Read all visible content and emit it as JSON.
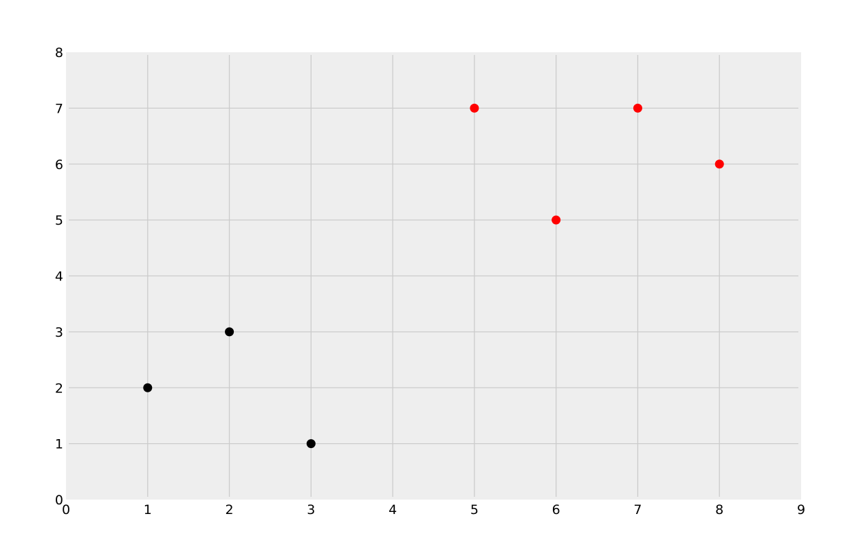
{
  "chart_data": {
    "type": "scatter",
    "title": "",
    "xlabel": "",
    "ylabel": "",
    "xlim": [
      0,
      9
    ],
    "ylim": [
      0,
      8
    ],
    "xticks": [
      "0",
      "1",
      "2",
      "3",
      "4",
      "5",
      "6",
      "7",
      "8",
      "9"
    ],
    "yticks": [
      "0",
      "1",
      "2",
      "3",
      "4",
      "5",
      "6",
      "7",
      "8"
    ],
    "grid": true,
    "background": "#eeeeee",
    "grid_color": "#cbcbcb",
    "series": [
      {
        "color": "#000000",
        "points": [
          [
            1,
            2
          ],
          [
            2,
            3
          ],
          [
            3,
            1
          ]
        ]
      },
      {
        "color": "#ff0000",
        "points": [
          [
            5,
            7
          ],
          [
            6,
            5
          ],
          [
            7,
            7
          ],
          [
            8,
            6
          ]
        ]
      }
    ]
  }
}
